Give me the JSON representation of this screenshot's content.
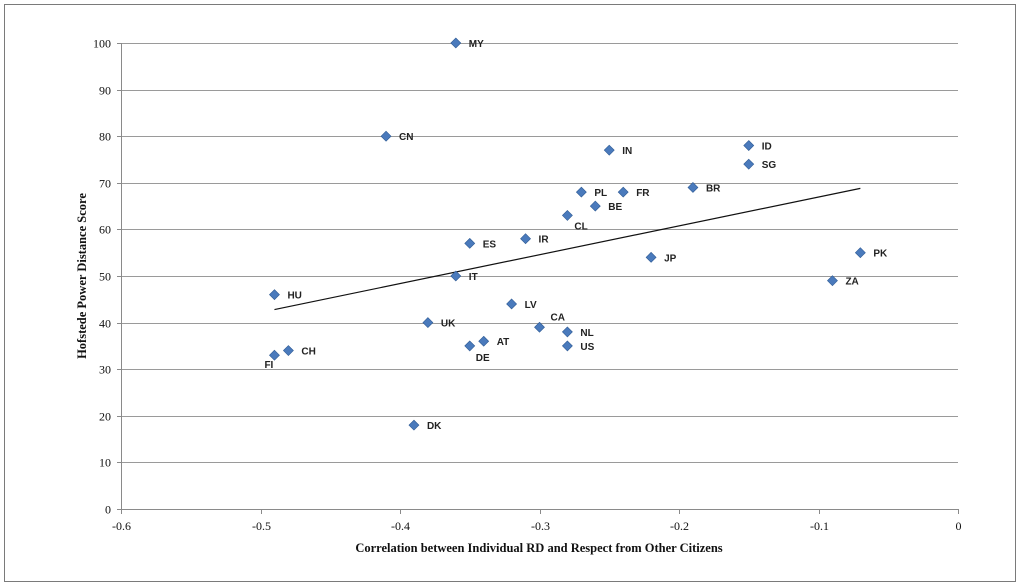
{
  "chart_data": {
    "type": "scatter",
    "title": "",
    "xlabel": "Correlation between Individual RD and Respect from Other Citizens",
    "ylabel": "Hofstede Power Distance Score",
    "xlim": [
      -0.6,
      0
    ],
    "ylim": [
      0,
      100
    ],
    "x_ticks": [
      "-0.6",
      "-0.5",
      "-0.4",
      "-0.3",
      "-0.2",
      "-0.1",
      "0"
    ],
    "y_ticks": [
      "0",
      "10",
      "20",
      "30",
      "40",
      "50",
      "60",
      "70",
      "80",
      "90",
      "100"
    ],
    "grid": "horizontal",
    "legend": "none",
    "marker": "diamond",
    "point_color": "#4a7abc",
    "points": [
      {
        "label": "MY",
        "x": -0.36,
        "y": 100
      },
      {
        "label": "CN",
        "x": -0.41,
        "y": 80
      },
      {
        "label": "IN",
        "x": -0.25,
        "y": 77
      },
      {
        "label": "ID",
        "x": -0.15,
        "y": 78
      },
      {
        "label": "SG",
        "x": -0.15,
        "y": 74
      },
      {
        "label": "PL",
        "x": -0.27,
        "y": 68
      },
      {
        "label": "FR",
        "x": -0.24,
        "y": 68
      },
      {
        "label": "BR",
        "x": -0.19,
        "y": 69
      },
      {
        "label": "BE",
        "x": -0.26,
        "y": 65
      },
      {
        "label": "CL",
        "x": -0.28,
        "y": 63
      },
      {
        "label": "ES",
        "x": -0.35,
        "y": 57
      },
      {
        "label": "IR",
        "x": -0.31,
        "y": 58
      },
      {
        "label": "JP",
        "x": -0.22,
        "y": 54
      },
      {
        "label": "PK",
        "x": -0.07,
        "y": 55
      },
      {
        "label": "ZA",
        "x": -0.09,
        "y": 49
      },
      {
        "label": "IT",
        "x": -0.36,
        "y": 50
      },
      {
        "label": "HU",
        "x": -0.49,
        "y": 46
      },
      {
        "label": "LV",
        "x": -0.32,
        "y": 44
      },
      {
        "label": "UK",
        "x": -0.38,
        "y": 40
      },
      {
        "label": "CA",
        "x": -0.3,
        "y": 39
      },
      {
        "label": "NL",
        "x": -0.28,
        "y": 38
      },
      {
        "label": "AT",
        "x": -0.34,
        "y": 36
      },
      {
        "label": "US",
        "x": -0.28,
        "y": 35
      },
      {
        "label": "DE",
        "x": -0.35,
        "y": 35
      },
      {
        "label": "CH",
        "x": -0.48,
        "y": 34
      },
      {
        "label": "FI",
        "x": -0.49,
        "y": 33
      },
      {
        "label": "DK",
        "x": -0.39,
        "y": 18
      }
    ],
    "trendline": {
      "type": "linear",
      "color": "#000000",
      "start": {
        "x": -0.49,
        "y": 42.8
      },
      "end": {
        "x": -0.07,
        "y": 68.8
      }
    }
  }
}
